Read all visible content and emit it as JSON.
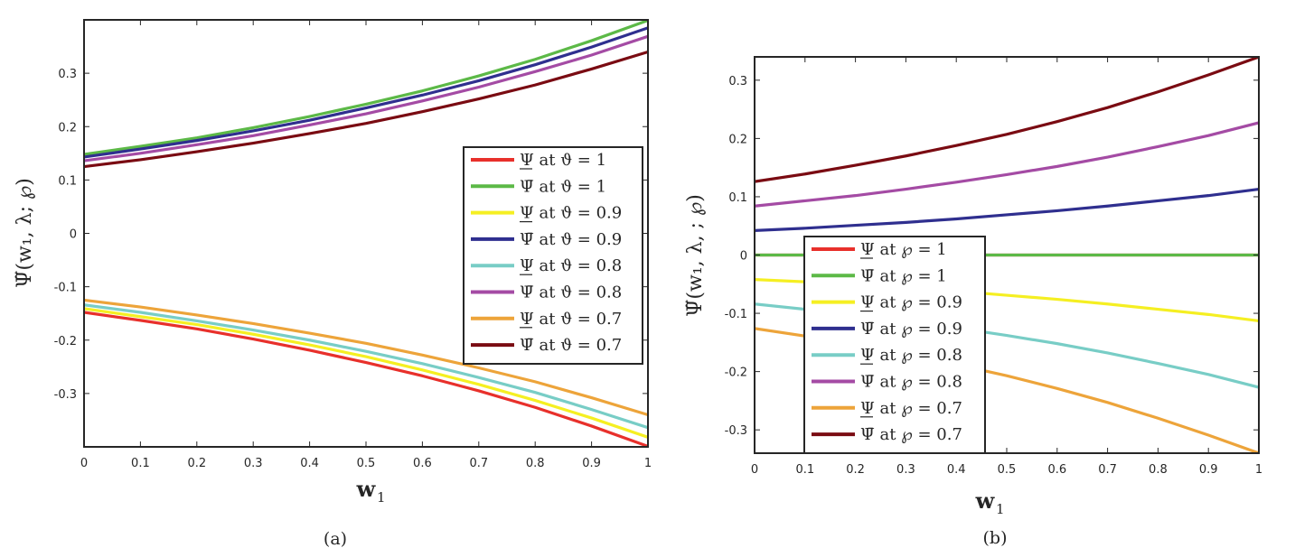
{
  "chart_data": [
    {
      "type": "line",
      "caption": "(a)",
      "title": "",
      "xlabel": "w",
      "xlabel_sub": "1",
      "ylabel": "Ψ̃(w₁, λ; ℘)",
      "xlim": [
        0,
        1
      ],
      "ylim": [
        -0.4,
        0.4
      ],
      "xticks": [
        "0",
        "0.1",
        "0.2",
        "0.3",
        "0.4",
        "0.5",
        "0.6",
        "0.7",
        "0.8",
        "0.9",
        "1"
      ],
      "yticks": [
        "-0.3",
        "-0.2",
        "-0.1",
        "0",
        "0.1",
        "0.2",
        "0.3"
      ],
      "yticks_values": [
        -0.3,
        -0.2,
        -0.1,
        0,
        0.1,
        0.2,
        0.3
      ],
      "grid": false,
      "legend": "right",
      "x": [
        0,
        0.1,
        0.2,
        0.3,
        0.4,
        0.5,
        0.6,
        0.7,
        0.8,
        0.9,
        1
      ],
      "series": [
        {
          "name": "Ψ at ϑ = 1",
          "bound": "lower",
          "color": "#e8302b",
          "values": [
            -0.148,
            -0.163,
            -0.179,
            -0.198,
            -0.219,
            -0.242,
            -0.267,
            -0.295,
            -0.326,
            -0.361,
            -0.399
          ]
        },
        {
          "name": "Ψ̄ at ϑ = 1",
          "bound": "upper",
          "color": "#5cb947",
          "values": [
            0.148,
            0.163,
            0.179,
            0.198,
            0.219,
            0.242,
            0.267,
            0.295,
            0.326,
            0.361,
            0.399
          ]
        },
        {
          "name": "Ψ at ϑ = 0.9",
          "bound": "lower",
          "color": "#f5ef22",
          "values": [
            -0.141,
            -0.156,
            -0.171,
            -0.189,
            -0.209,
            -0.231,
            -0.256,
            -0.283,
            -0.313,
            -0.346,
            -0.382
          ]
        },
        {
          "name": "Ψ̄ at ϑ = 0.9",
          "bound": "upper",
          "color": "#2f2f8f",
          "values": [
            0.143,
            0.158,
            0.174,
            0.192,
            0.212,
            0.235,
            0.259,
            0.286,
            0.316,
            0.349,
            0.385
          ]
        },
        {
          "name": "Ψ at ϑ = 0.8",
          "bound": "lower",
          "color": "#78cdc6",
          "values": [
            -0.134,
            -0.148,
            -0.164,
            -0.181,
            -0.2,
            -0.221,
            -0.244,
            -0.27,
            -0.298,
            -0.33,
            -0.364
          ]
        },
        {
          "name": "Ψ̄ at ϑ = 0.8",
          "bound": "upper",
          "color": "#a44ba4",
          "values": [
            0.136,
            0.15,
            0.166,
            0.183,
            0.203,
            0.224,
            0.248,
            0.274,
            0.303,
            0.334,
            0.369
          ]
        },
        {
          "name": "Ψ at ϑ = 0.7",
          "bound": "lower",
          "color": "#eda43a",
          "values": [
            -0.125,
            -0.138,
            -0.153,
            -0.169,
            -0.187,
            -0.206,
            -0.228,
            -0.252,
            -0.278,
            -0.308,
            -0.34
          ]
        },
        {
          "name": "Ψ̄ at ϑ = 0.7",
          "bound": "upper",
          "color": "#7a0b12",
          "values": [
            0.125,
            0.138,
            0.153,
            0.169,
            0.187,
            0.206,
            0.228,
            0.252,
            0.278,
            0.308,
            0.34
          ]
        }
      ]
    },
    {
      "type": "line",
      "caption": "(b)",
      "title": "",
      "xlabel": "w",
      "xlabel_sub": "1",
      "ylabel": "Ψ̃(w₁, λ, ; ℘)",
      "xlim": [
        0,
        1
      ],
      "ylim": [
        -0.34,
        0.34
      ],
      "xticks": [
        "0",
        "0.1",
        "0.2",
        "0.3",
        "0.4",
        "0.5",
        "0.6",
        "0.7",
        "0.8",
        "0.9",
        "1"
      ],
      "yticks": [
        "-0.3",
        "-0.2",
        "-0.1",
        "0",
        "0.1",
        "0.2",
        "0.3"
      ],
      "yticks_values": [
        -0.3,
        -0.2,
        -0.1,
        0,
        0.1,
        0.2,
        0.3
      ],
      "grid": false,
      "legend": "left-bottom",
      "x": [
        0,
        0.1,
        0.2,
        0.3,
        0.4,
        0.5,
        0.6,
        0.7,
        0.8,
        0.9,
        1
      ],
      "series": [
        {
          "name": "Ψ at ℘ = 1",
          "bound": "lower",
          "color": "#e8302b",
          "values": [
            0,
            0,
            0,
            0,
            0,
            0,
            0,
            0,
            0,
            0,
            0
          ]
        },
        {
          "name": "Ψ̄ at ℘ = 1",
          "bound": "upper",
          "color": "#5cb947",
          "values": [
            0,
            0,
            0,
            0,
            0,
            0,
            0,
            0,
            0,
            0,
            0
          ]
        },
        {
          "name": "Ψ at ℘ = 0.9",
          "bound": "lower",
          "color": "#f5ef22",
          "values": [
            -0.042,
            -0.046,
            -0.051,
            -0.056,
            -0.062,
            -0.069,
            -0.076,
            -0.084,
            -0.093,
            -0.102,
            -0.113
          ]
        },
        {
          "name": "Ψ̄ at ℘ = 0.9",
          "bound": "upper",
          "color": "#2f2f8f",
          "values": [
            0.042,
            0.046,
            0.051,
            0.056,
            0.062,
            0.069,
            0.076,
            0.084,
            0.093,
            0.102,
            0.113
          ]
        },
        {
          "name": "Ψ at ℘ = 0.8",
          "bound": "lower",
          "color": "#78cdc6",
          "values": [
            -0.084,
            -0.093,
            -0.102,
            -0.113,
            -0.125,
            -0.138,
            -0.152,
            -0.168,
            -0.186,
            -0.205,
            -0.227
          ]
        },
        {
          "name": "Ψ̄ at ℘ = 0.8",
          "bound": "upper",
          "color": "#a44ba4",
          "values": [
            0.084,
            0.093,
            0.102,
            0.113,
            0.125,
            0.138,
            0.152,
            0.168,
            0.186,
            0.205,
            0.227
          ]
        },
        {
          "name": "Ψ at ℘ = 0.7",
          "bound": "lower",
          "color": "#eda43a",
          "values": [
            -0.126,
            -0.139,
            -0.154,
            -0.17,
            -0.188,
            -0.207,
            -0.229,
            -0.253,
            -0.28,
            -0.309,
            -0.34
          ]
        },
        {
          "name": "Ψ̄ at ℘ = 0.7",
          "bound": "upper",
          "color": "#7a0b12",
          "values": [
            0.126,
            0.139,
            0.154,
            0.17,
            0.188,
            0.207,
            0.229,
            0.253,
            0.28,
            0.309,
            0.34
          ]
        }
      ]
    }
  ]
}
